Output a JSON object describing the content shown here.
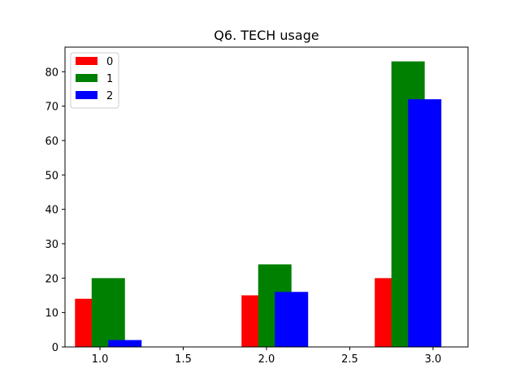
{
  "chart_data": {
    "type": "bar",
    "title": "Q6. TECH usage",
    "xlabel": "",
    "ylabel": "",
    "xlim": [
      0.79,
      3.21
    ],
    "ylim": [
      0,
      87.15
    ],
    "xticks": [
      1.0,
      1.5,
      2.0,
      2.5,
      3.0
    ],
    "xtick_labels": [
      "1.0",
      "1.5",
      "2.0",
      "2.5",
      "3.0"
    ],
    "yticks": [
      0,
      10,
      20,
      30,
      40,
      50,
      60,
      70,
      80
    ],
    "ytick_labels": [
      "0",
      "10",
      "20",
      "30",
      "40",
      "50",
      "60",
      "70",
      "80"
    ],
    "grid": false,
    "legend_position": "top-left",
    "bar_width": 0.2,
    "series": [
      {
        "name": "0",
        "color": "#ff0000",
        "x": [
          0.95,
          1.95,
          2.75
        ],
        "values": [
          14,
          15,
          20
        ]
      },
      {
        "name": "1",
        "color": "#008000",
        "x": [
          1.05,
          2.05,
          2.85
        ],
        "values": [
          20,
          24,
          83
        ]
      },
      {
        "name": "2",
        "color": "#0000ff",
        "x": [
          1.15,
          2.15,
          2.95
        ],
        "values": [
          2,
          16,
          72
        ]
      }
    ]
  }
}
